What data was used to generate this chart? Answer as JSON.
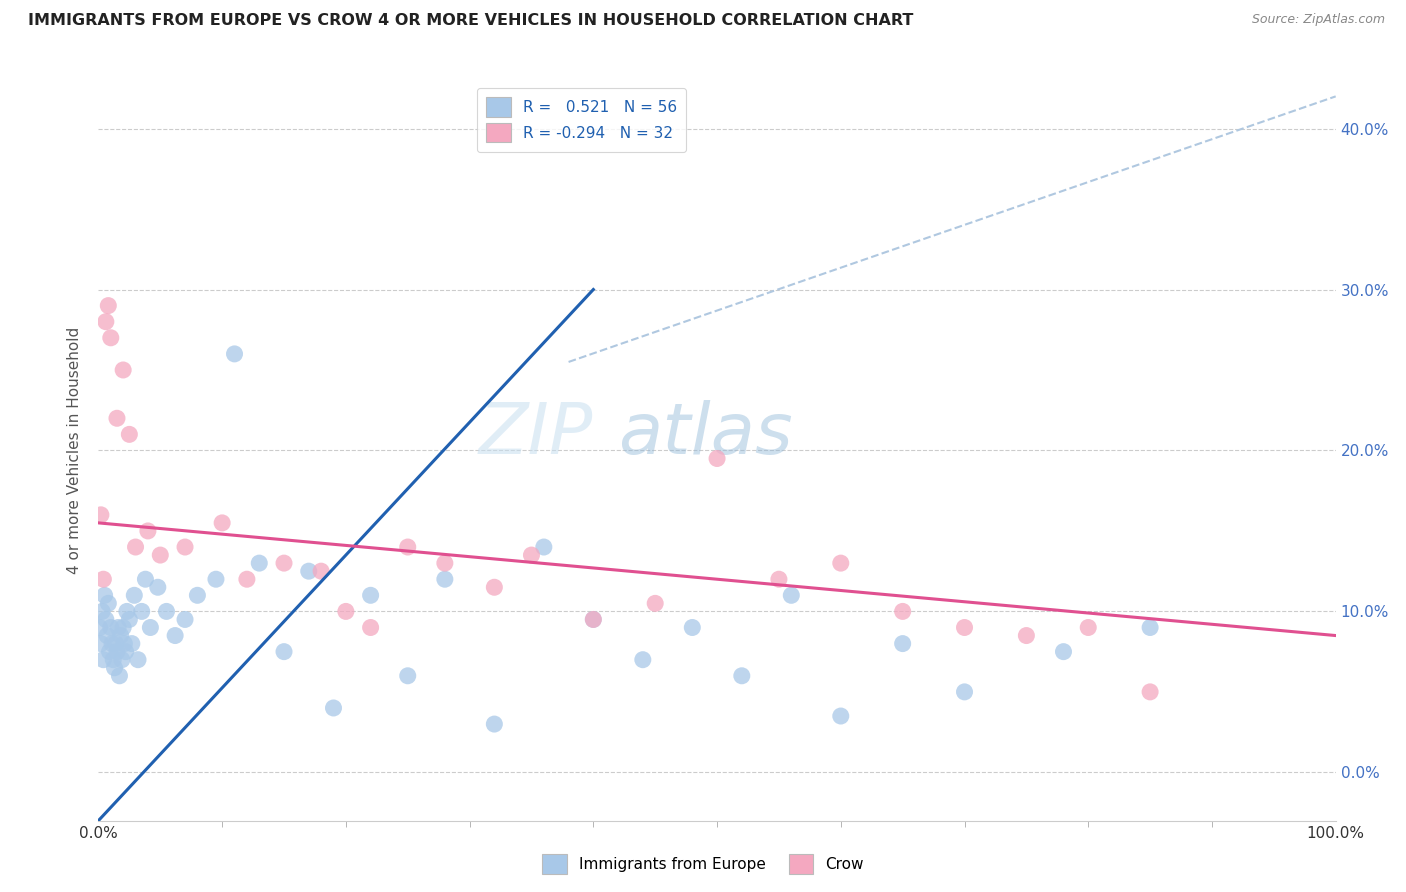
{
  "title": "IMMIGRANTS FROM EUROPE VS CROW 4 OR MORE VEHICLES IN HOUSEHOLD CORRELATION CHART",
  "source": "Source: ZipAtlas.com",
  "ylabel": "4 or more Vehicles in Household",
  "blue_color": "#a8c8e8",
  "pink_color": "#f4a8c0",
  "blue_line_color": "#2060b0",
  "pink_line_color": "#e05090",
  "dashed_line_color": "#b0c8e0",
  "watermark_zip": "ZIP",
  "watermark_atlas": "atlas",
  "blue_scatter_x": [
    0.1,
    0.2,
    0.3,
    0.4,
    0.5,
    0.6,
    0.7,
    0.8,
    0.9,
    1.0,
    1.1,
    1.2,
    1.3,
    1.4,
    1.5,
    1.6,
    1.7,
    1.8,
    1.9,
    2.0,
    2.1,
    2.2,
    2.3,
    2.5,
    2.7,
    2.9,
    3.2,
    3.5,
    3.8,
    4.2,
    4.8,
    5.5,
    6.2,
    7.0,
    8.0,
    9.5,
    11.0,
    13.0,
    15.0,
    17.0,
    19.0,
    22.0,
    25.0,
    28.0,
    32.0,
    36.0,
    40.0,
    44.0,
    48.0,
    52.0,
    56.0,
    60.0,
    65.0,
    70.0,
    78.0,
    85.0
  ],
  "blue_scatter_y": [
    9.0,
    8.0,
    10.0,
    7.0,
    11.0,
    9.5,
    8.5,
    10.5,
    7.5,
    9.0,
    8.0,
    7.0,
    6.5,
    8.0,
    7.5,
    9.0,
    6.0,
    8.5,
    7.0,
    9.0,
    8.0,
    7.5,
    10.0,
    9.5,
    8.0,
    11.0,
    7.0,
    10.0,
    12.0,
    9.0,
    11.5,
    10.0,
    8.5,
    9.5,
    11.0,
    12.0,
    26.0,
    13.0,
    7.5,
    12.5,
    4.0,
    11.0,
    6.0,
    12.0,
    3.0,
    14.0,
    9.5,
    7.0,
    9.0,
    6.0,
    11.0,
    3.5,
    8.0,
    5.0,
    7.5,
    9.0
  ],
  "pink_scatter_x": [
    0.2,
    0.4,
    0.6,
    0.8,
    1.0,
    1.5,
    2.0,
    2.5,
    3.0,
    4.0,
    5.0,
    7.0,
    10.0,
    12.0,
    15.0,
    18.0,
    20.0,
    22.0,
    25.0,
    28.0,
    32.0,
    35.0,
    40.0,
    45.0,
    50.0,
    55.0,
    60.0,
    65.0,
    70.0,
    75.0,
    80.0,
    85.0
  ],
  "pink_scatter_y": [
    16.0,
    12.0,
    28.0,
    29.0,
    27.0,
    22.0,
    25.0,
    21.0,
    14.0,
    15.0,
    13.5,
    14.0,
    15.5,
    12.0,
    13.0,
    12.5,
    10.0,
    9.0,
    14.0,
    13.0,
    11.5,
    13.5,
    9.5,
    10.5,
    19.5,
    12.0,
    13.0,
    10.0,
    9.0,
    8.5,
    9.0,
    5.0
  ],
  "blue_trend": [
    0.0,
    40.0
  ],
  "blue_trend_y": [
    -3.0,
    30.0
  ],
  "pink_trend": [
    0.0,
    100.0
  ],
  "pink_trend_y": [
    15.5,
    8.5
  ],
  "dashed_trend": [
    38.0,
    100.0
  ],
  "dashed_trend_y": [
    25.5,
    42.0
  ],
  "xlim": [
    0,
    100
  ],
  "ylim": [
    -3,
    43
  ],
  "yticks": [
    0,
    10,
    20,
    30,
    40
  ],
  "y_right_labels": [
    "0.0%",
    "10.0%",
    "20.0%",
    "30.0%",
    "40.0%"
  ],
  "xtick_minor": [
    10,
    20,
    30,
    40,
    50,
    60,
    70,
    80,
    90
  ],
  "figsize": [
    14.06,
    8.92
  ],
  "dpi": 100
}
